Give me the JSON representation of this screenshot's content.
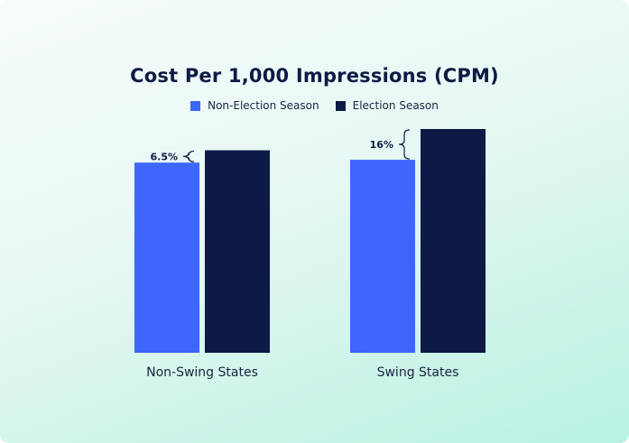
{
  "chart_data": {
    "type": "bar",
    "title": "Cost Per 1,000 Impressions (CPM)",
    "categories": [
      "Non-Swing States",
      "Swing States"
    ],
    "series": [
      {
        "name": "Non-Election Season",
        "color": "#3d66fc",
        "values": [
          6.8,
          6.9
        ]
      },
      {
        "name": "Election Season",
        "color": "#0c1a45",
        "values": [
          7.24,
          8.0
        ]
      }
    ],
    "annotations": [
      {
        "category": "Non-Swing States",
        "text": "6.5%"
      },
      {
        "category": "Swing States",
        "text": "16%"
      }
    ],
    "ylim": [
      0,
      8.0
    ],
    "grid": false,
    "legend_position": "top-center",
    "xlabel": "",
    "ylabel": ""
  }
}
